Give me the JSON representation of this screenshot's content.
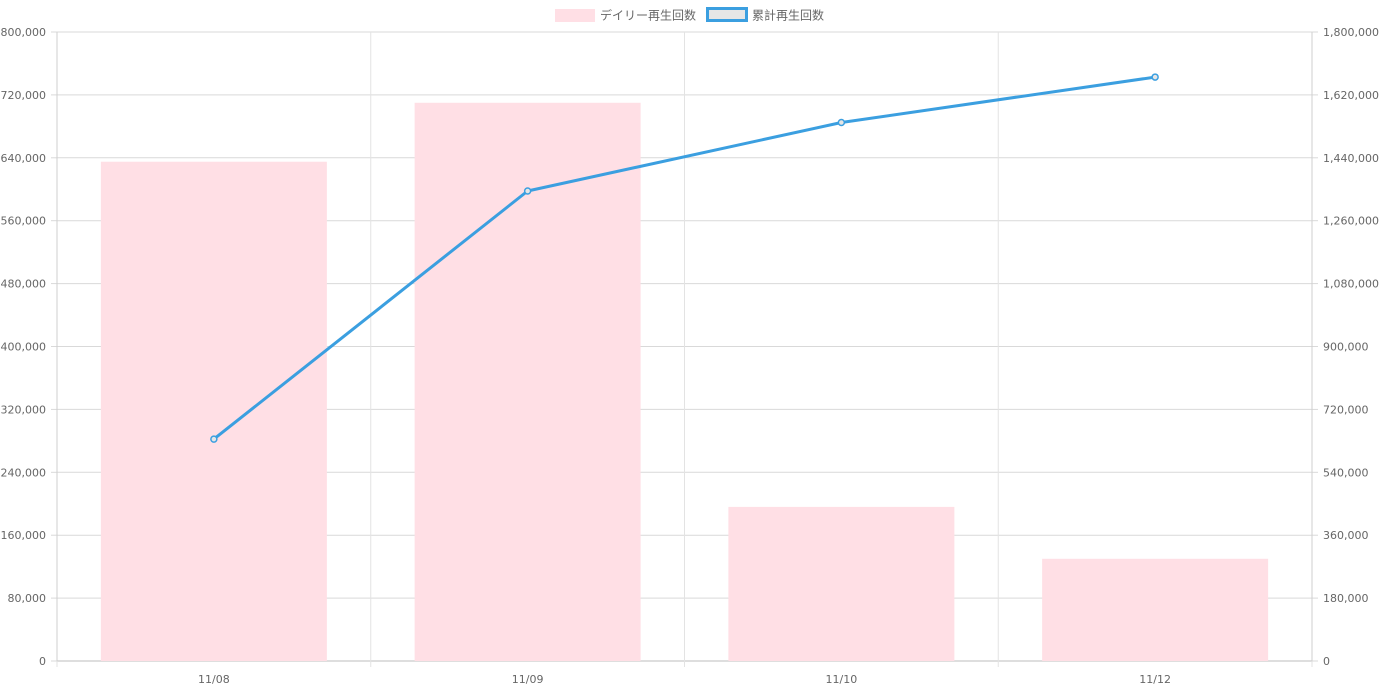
{
  "chart_data": {
    "type": "bar",
    "categories": [
      "11/08",
      "11/09",
      "11/10",
      "11/12"
    ],
    "series": [
      {
        "name": "デイリー再生回数",
        "type": "bar",
        "axis": "left",
        "values": [
          635000,
          710000,
          196000,
          130000
        ],
        "color": "#ffdfe5"
      },
      {
        "name": "累計再生回数",
        "type": "line",
        "axis": "right",
        "values": [
          635000,
          1345000,
          1541000,
          1671000
        ],
        "color": "#3b9fe0"
      }
    ],
    "y_left": {
      "min": 0,
      "max": 800000,
      "step": 80000,
      "ticks": [
        "0",
        "80,000",
        "160,000",
        "240,000",
        "320,000",
        "400,000",
        "480,000",
        "560,000",
        "640,000",
        "720,000",
        "800,000"
      ]
    },
    "y_right": {
      "min": 0,
      "max": 1800000,
      "step": 180000,
      "ticks": [
        "0",
        "180,000",
        "360,000",
        "540,000",
        "720,000",
        "900,000",
        "1,080,000",
        "1,260,000",
        "1,440,000",
        "1,620,000",
        "1,800,000"
      ]
    },
    "grid": true,
    "legend_position": "top-center"
  }
}
